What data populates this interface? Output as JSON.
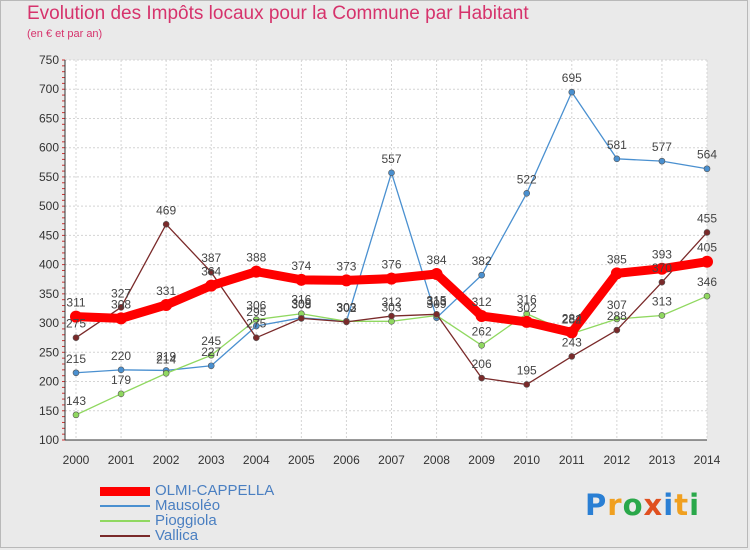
{
  "title": "Evolution des Impôts locaux pour la Commune par Habitant",
  "subtitle": "(en € et par an)",
  "logo_text": "Proxiti",
  "chart_data": {
    "type": "line",
    "x": [
      "2000",
      "2001",
      "2002",
      "2003",
      "2004",
      "2005",
      "2006",
      "2007",
      "2008",
      "2009",
      "2010",
      "2011",
      "2012",
      "2013",
      "2014"
    ],
    "y_ticks": [
      100,
      150,
      200,
      250,
      300,
      350,
      400,
      450,
      500,
      550,
      600,
      650,
      700,
      750
    ],
    "ylim": [
      100,
      750
    ],
    "grid": true,
    "legend_position": "bottom-left",
    "series": [
      {
        "name": "OLMI-CAPPELLA",
        "color": "#ff0000",
        "values": [
          311,
          308,
          331,
          364,
          388,
          374,
          373,
          376,
          384,
          312,
          302,
          284,
          385,
          393,
          405
        ]
      },
      {
        "name": "Mausoléo",
        "color": "#4a90d0",
        "values": [
          215,
          220,
          219,
          227,
          295,
          309,
          303,
          557,
          309,
          382,
          522,
          695,
          581,
          577,
          564
        ]
      },
      {
        "name": "Pioggiola",
        "color": "#90d860",
        "values": [
          143,
          179,
          214,
          245,
          306,
          316,
          303,
          303,
          313,
          262,
          316,
          282,
          307,
          313,
          346
        ]
      },
      {
        "name": "Vallica",
        "color": "#7a2a2a",
        "values": [
          275,
          327,
          469,
          387,
          275,
          308,
          302,
          312,
          315,
          206,
          195,
          243,
          288,
          370,
          455
        ]
      }
    ]
  }
}
